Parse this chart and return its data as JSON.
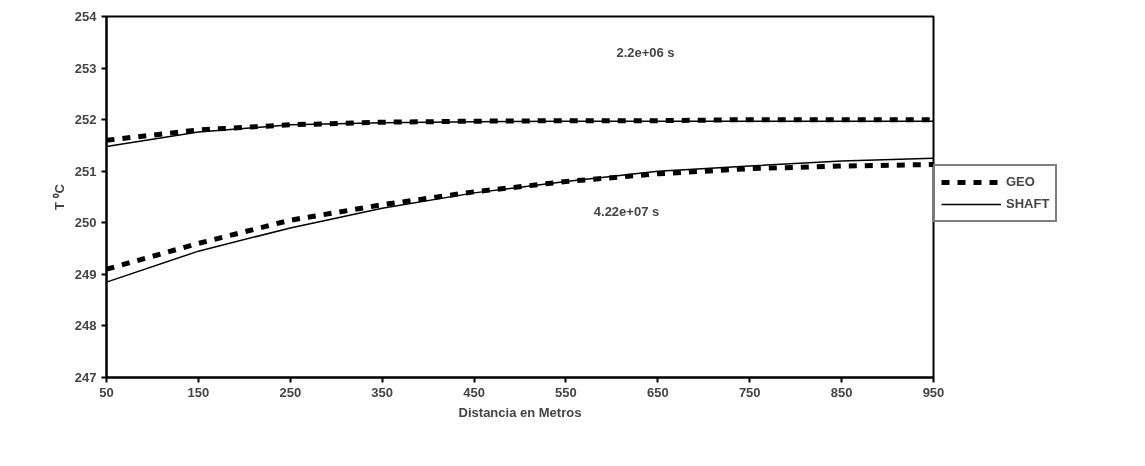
{
  "chart_data": {
    "type": "line",
    "xlabel": "Distancia en Metros",
    "ylabel": "T ⁰C",
    "x": [
      50,
      150,
      250,
      350,
      450,
      550,
      650,
      750,
      850,
      950
    ],
    "series": [
      {
        "name": "GEO",
        "color": "#000000",
        "line_style": "dashed",
        "values": [
          251.6,
          251.8,
          251.9,
          251.95,
          251.97,
          251.98,
          251.98,
          252.0,
          252.0,
          252.0
        ]
      },
      {
        "name": "SHAFT",
        "color": "#000000",
        "line_style": "solid",
        "values": [
          251.48,
          251.76,
          251.9,
          251.94,
          251.96,
          251.97,
          251.97,
          251.97,
          251.97,
          251.97
        ]
      },
      {
        "color": "#000000",
        "line_style": "dashed",
        "values": [
          249.1,
          249.6,
          250.05,
          250.35,
          250.6,
          250.8,
          250.95,
          251.05,
          251.1,
          251.13
        ]
      },
      {
        "color": "#000000",
        "line_style": "solid",
        "values": [
          248.85,
          249.45,
          249.9,
          250.28,
          250.58,
          250.8,
          251.0,
          251.1,
          251.2,
          251.25
        ]
      }
    ],
    "xlim": [
      50,
      950
    ],
    "xticks": [
      50,
      150,
      250,
      350,
      450,
      550,
      650,
      750,
      850,
      950
    ],
    "ylim": [
      247,
      254
    ],
    "yticks": [
      247,
      248,
      249,
      250,
      251,
      252,
      253,
      254
    ],
    "annotations": [
      "2.2e+06 s",
      "4.22e+07 s"
    ],
    "grid": false,
    "legend": "right",
    "marker": "none"
  }
}
